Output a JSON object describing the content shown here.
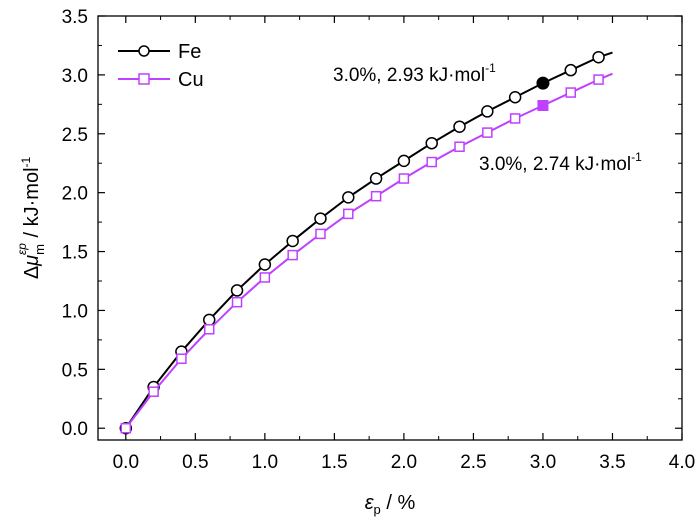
{
  "chart_data": {
    "type": "line",
    "x_axis": {
      "range": [
        -0.2,
        4.0
      ],
      "ticks": [
        "0.0",
        "0.5",
        "1.0",
        "1.5",
        "2.0",
        "2.5",
        "3.0",
        "3.5",
        "4.0"
      ],
      "label_symbol": "ε",
      "label_sub": "p",
      "label_unit": " / %"
    },
    "y_axis": {
      "range": [
        -0.1,
        3.5
      ],
      "ticks": [
        "0.0",
        "0.5",
        "1.0",
        "1.5",
        "2.0",
        "2.5",
        "3.0",
        "3.5"
      ],
      "label_prefix": "Δ",
      "label_symbol": "μ",
      "label_sub": "m",
      "label_sup": "εp",
      "label_unit": " / kJ·mol",
      "label_unit_sup": "-1"
    },
    "grid": false,
    "legend": {
      "placement": "top-left",
      "entries": [
        "Fe",
        "Cu"
      ]
    },
    "series": [
      {
        "name": "Fe",
        "color": "#000000",
        "marker": "circle",
        "curve": {
          "x": [
            0.0,
            3.5
          ],
          "y": [
            0.0,
            3.19
          ]
        },
        "markers": {
          "x": [
            0.0,
            0.2,
            0.4,
            0.6,
            0.8,
            1.0,
            1.2,
            1.4,
            1.6,
            1.8,
            2.0,
            2.2,
            2.4,
            2.6,
            2.8,
            3.2,
            3.4
          ],
          "y": [
            0.0,
            0.35,
            0.65,
            0.92,
            1.17,
            1.39,
            1.59,
            1.78,
            1.96,
            2.12,
            2.27,
            2.42,
            2.56,
            2.69,
            2.81,
            3.04,
            3.15
          ]
        },
        "highlight": {
          "x": 3.0,
          "y": 2.93
        }
      },
      {
        "name": "Cu",
        "color": "#bf40ff",
        "marker": "square",
        "curve": {
          "x": [
            0.0,
            3.5
          ],
          "y": [
            0.0,
            3.01
          ]
        },
        "markers": {
          "x": [
            0.0,
            0.2,
            0.4,
            0.6,
            0.8,
            1.0,
            1.2,
            1.4,
            1.6,
            1.8,
            2.0,
            2.2,
            2.4,
            2.6,
            2.8,
            3.2,
            3.4
          ],
          "y": [
            0.0,
            0.31,
            0.59,
            0.84,
            1.07,
            1.28,
            1.47,
            1.65,
            1.82,
            1.97,
            2.12,
            2.26,
            2.39,
            2.51,
            2.63,
            2.85,
            2.96
          ]
        },
        "highlight": {
          "x": 3.0,
          "y": 2.74
        }
      }
    ],
    "annotations": [
      {
        "text": "3.0%, 2.93 kJ·mol",
        "sup": "-1",
        "series": "Fe"
      },
      {
        "text": "3.0%, 2.74 kJ·mol",
        "sup": "-1",
        "series": "Cu"
      }
    ]
  }
}
